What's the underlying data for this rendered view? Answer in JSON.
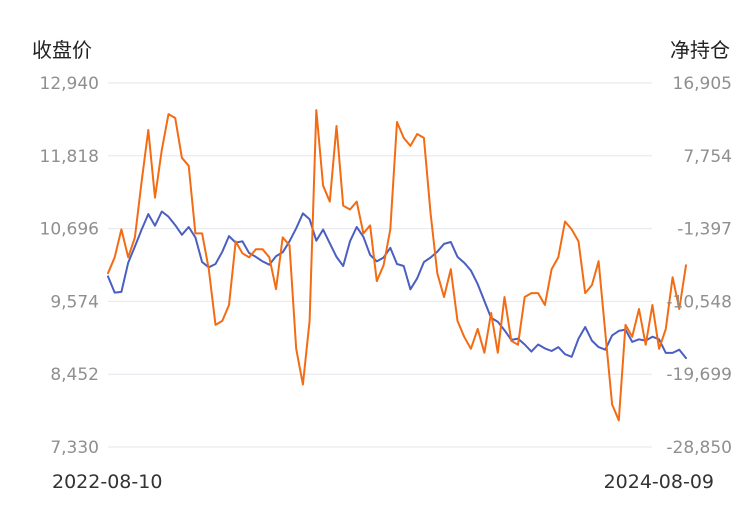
{
  "chart_data": {
    "type": "line",
    "left_axis": {
      "title": "收盘价",
      "ticks": [
        12940,
        11818,
        10696,
        9574,
        8452,
        7330
      ],
      "tick_labels": [
        "12,940",
        "11,818",
        "10,696",
        "9,574",
        "8,452",
        "7,330"
      ],
      "ylim": [
        7330,
        12940
      ]
    },
    "right_axis": {
      "title": "净持仓",
      "ticks": [
        16905,
        7754,
        -1397,
        -10548,
        -19699,
        -28850
      ],
      "tick_labels": [
        "16,905",
        "7,754",
        "-1,397",
        "-10,548",
        "-19,699",
        "-28,850"
      ],
      "ylim": [
        -28850,
        16905
      ]
    },
    "x_labels": [
      "2022-08-10",
      "2024-08-09"
    ],
    "grid": true,
    "series": [
      {
        "axis": "left",
        "color": "#4a5fc1",
        "values": [
          9960,
          9710,
          9720,
          10170,
          10420,
          10680,
          10920,
          10740,
          10960,
          10880,
          10750,
          10600,
          10720,
          10560,
          10180,
          10100,
          10150,
          10340,
          10580,
          10480,
          10500,
          10320,
          10260,
          10190,
          10140,
          10270,
          10330,
          10500,
          10700,
          10930,
          10840,
          10510,
          10680,
          10470,
          10260,
          10120,
          10500,
          10720,
          10570,
          10290,
          10190,
          10250,
          10400,
          10150,
          10120,
          9760,
          9930,
          10180,
          10250,
          10340,
          10460,
          10490,
          10260,
          10170,
          10050,
          9840,
          9580,
          9320,
          9260,
          9130,
          8980,
          9000,
          8910,
          8800,
          8910,
          8850,
          8810,
          8870,
          8760,
          8720,
          9000,
          9180,
          8970,
          8870,
          8830,
          9050,
          9120,
          9140,
          8950,
          8990,
          8970,
          9030,
          8990,
          8780,
          8780,
          8830,
          8700
        ]
      },
      {
        "axis": "right",
        "color": "#f36c14",
        "values": [
          -7000,
          -5000,
          -1500,
          -5000,
          -2500,
          4500,
          11000,
          2500,
          8500,
          13000,
          12500,
          7500,
          6500,
          -2000,
          -2000,
          -6500,
          -13500,
          -13000,
          -11000,
          -3000,
          -4500,
          -5000,
          -4000,
          -4000,
          -5000,
          -9000,
          -2500,
          -3500,
          -16500,
          -21000,
          -13000,
          13500,
          4000,
          2000,
          11500,
          1500,
          1000,
          2000,
          -2000,
          -1000,
          -8000,
          -6000,
          -1500,
          12000,
          10000,
          9000,
          10500,
          10000,
          500,
          -7000,
          -10000,
          -6500,
          -13000,
          -15000,
          -16500,
          -14000,
          -17000,
          -12000,
          -17000,
          -10000,
          -15500,
          -16000,
          -10000,
          -9500,
          -9500,
          -11000,
          -6500,
          -5000,
          -500,
          -1500,
          -3000,
          -9500,
          -8500,
          -5500,
          -14500,
          -23500,
          -25500,
          -13500,
          -15000,
          -11500,
          -16000,
          -11000,
          -16500,
          -14000,
          -7500,
          -11500,
          -6000
        ]
      }
    ]
  }
}
